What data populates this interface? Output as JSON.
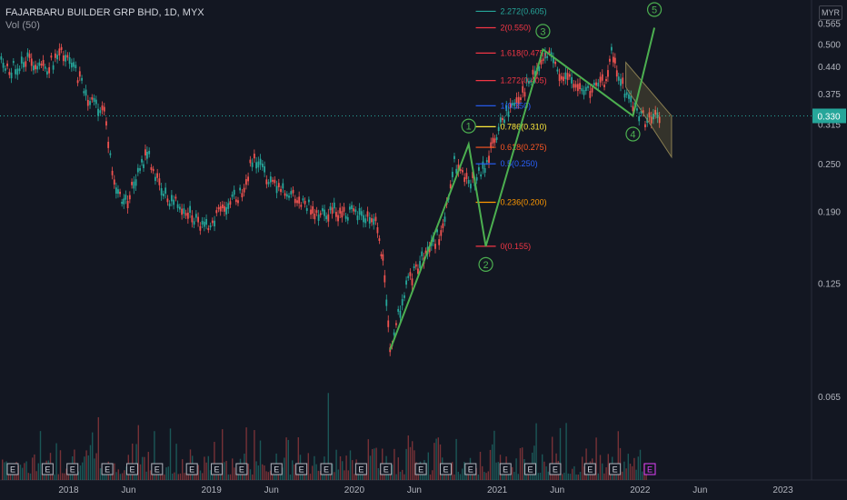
{
  "header": {
    "title": "FAJARBARU BUILDER GRP BHD, 1D, MYX",
    "volume": "Vol (50)"
  },
  "axis": {
    "currency": "MYR"
  },
  "chart_data": {
    "type": "line",
    "title": "FAJARBARU BUILDER GRP BHD, 1D, MYX",
    "ylim": [
      0.04,
      0.6
    ],
    "y_scale": "log",
    "y_ticks": [
      "0.565",
      "0.500",
      "0.440",
      "0.375",
      "0.315",
      "0.250",
      "0.190",
      "0.125",
      "0.065"
    ],
    "x_ticks": [
      "2018",
      "Jun",
      "2019",
      "Jun",
      "2020",
      "Jun",
      "2021",
      "Jun",
      "2022",
      "Jun",
      "2023"
    ],
    "last_price": {
      "label": "0.330",
      "value": 0.33,
      "color": "#26a69a"
    },
    "price_path": [
      [
        2017.5,
        0.46
      ],
      [
        2017.6,
        0.43
      ],
      [
        2017.7,
        0.46
      ],
      [
        2017.85,
        0.44
      ],
      [
        2017.95,
        0.47
      ],
      [
        2018.05,
        0.43
      ],
      [
        2018.15,
        0.36
      ],
      [
        2018.25,
        0.34
      ],
      [
        2018.32,
        0.22
      ],
      [
        2018.4,
        0.2
      ],
      [
        2018.5,
        0.24
      ],
      [
        2018.55,
        0.27
      ],
      [
        2018.65,
        0.21
      ],
      [
        2018.75,
        0.2
      ],
      [
        2018.85,
        0.19
      ],
      [
        2018.95,
        0.17
      ],
      [
        2019.05,
        0.19
      ],
      [
        2019.2,
        0.21
      ],
      [
        2019.3,
        0.26
      ],
      [
        2019.4,
        0.23
      ],
      [
        2019.5,
        0.22
      ],
      [
        2019.6,
        0.2
      ],
      [
        2019.75,
        0.19
      ],
      [
        2019.9,
        0.19
      ],
      [
        2020.05,
        0.185
      ],
      [
        2020.15,
        0.18
      ],
      [
        2020.2,
        0.14
      ],
      [
        2020.25,
        0.085
      ],
      [
        2020.35,
        0.12
      ],
      [
        2020.5,
        0.15
      ],
      [
        2020.62,
        0.17
      ],
      [
        2020.7,
        0.25
      ],
      [
        2020.8,
        0.22
      ],
      [
        2020.9,
        0.24
      ],
      [
        2020.97,
        0.28
      ],
      [
        2021.05,
        0.33
      ],
      [
        2021.15,
        0.37
      ],
      [
        2021.25,
        0.41
      ],
      [
        2021.35,
        0.47
      ],
      [
        2021.45,
        0.42
      ],
      [
        2021.55,
        0.39
      ],
      [
        2021.65,
        0.38
      ],
      [
        2021.75,
        0.4
      ],
      [
        2021.8,
        0.47
      ],
      [
        2021.85,
        0.41
      ],
      [
        2021.95,
        0.35
      ],
      [
        2022.05,
        0.32
      ],
      [
        2022.15,
        0.33
      ]
    ],
    "fib_levels": [
      {
        "label": "2.272(0.605)",
        "value": 0.605,
        "color": "#26a69a"
      },
      {
        "label": "2(0.550)",
        "value": 0.55,
        "color": "#f23645"
      },
      {
        "label": "1.618(0.475)",
        "value": 0.475,
        "color": "#f23645"
      },
      {
        "label": "1.272(0.405)",
        "value": 0.405,
        "color": "#f23645"
      },
      {
        "label": "1(0.350)",
        "value": 0.35,
        "color": "#2962ff"
      },
      {
        "label": "0.786(0.310)",
        "value": 0.31,
        "color": "#ffeb3b"
      },
      {
        "label": "0.618(0.275)",
        "value": 0.275,
        "color": "#ff5722"
      },
      {
        "label": "0.5(0.250)",
        "value": 0.25,
        "color": "#2962ff"
      },
      {
        "label": "0.236(0.200)",
        "value": 0.2,
        "color": "#ff9800"
      },
      {
        "label": "0(0.155)",
        "value": 0.155,
        "color": "#f23645"
      }
    ],
    "waves": [
      {
        "label": "1",
        "x": 2020.8,
        "y": 0.28
      },
      {
        "label": "2",
        "x": 2020.92,
        "y": 0.155
      },
      {
        "label": "3",
        "x": 2021.32,
        "y": 0.485
      },
      {
        "label": "4",
        "x": 2021.95,
        "y": 0.33
      },
      {
        "label": "5",
        "x": 2022.1,
        "y": 0.55
      }
    ],
    "wave_start": {
      "x": 2020.25,
      "y": 0.085
    },
    "channel": {
      "x0": 2021.9,
      "x1": 2022.22,
      "top0": 0.45,
      "top1": 0.33,
      "bot0": 0.39,
      "bot1": 0.26
    },
    "events": [
      "E",
      "E",
      "E",
      "E",
      "E",
      "E",
      "E",
      "E",
      "E",
      "E",
      "E",
      "E",
      "E",
      "E",
      "E",
      "E",
      "E",
      "E",
      "E",
      "E",
      "E",
      "E"
    ]
  }
}
